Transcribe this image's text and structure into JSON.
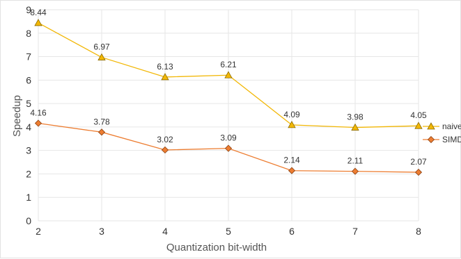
{
  "chart_data": {
    "type": "line",
    "x": [
      2,
      3,
      4,
      5,
      6,
      7,
      8
    ],
    "series": [
      {
        "name": "naive",
        "values": [
          8.44,
          6.97,
          6.13,
          6.21,
          4.09,
          3.98,
          4.05
        ],
        "color": "#F2B705",
        "marker": "triangle"
      },
      {
        "name": "SIMD",
        "values": [
          4.16,
          3.78,
          3.02,
          3.09,
          2.14,
          2.11,
          2.07
        ],
        "color": "#ED7D31",
        "marker": "diamond"
      }
    ],
    "data_labels": [
      [
        "8.44",
        "6.97",
        "6.13",
        "6.21",
        "4.09",
        "3.98",
        "4.05"
      ],
      [
        "4.16",
        "3.78",
        "3.02",
        "3.09",
        "2.14",
        "2.11",
        "2.07"
      ]
    ],
    "xlabel": "Quantization bit-width",
    "ylabel": "Speedup",
    "ylim": [
      0,
      9
    ],
    "yticks": [
      "0",
      "1",
      "2",
      "3",
      "4",
      "5",
      "6",
      "7",
      "8",
      "9"
    ],
    "xticks": [
      "2",
      "3",
      "4",
      "5",
      "6",
      "7",
      "8"
    ],
    "grid": true,
    "legend_position": "right"
  }
}
